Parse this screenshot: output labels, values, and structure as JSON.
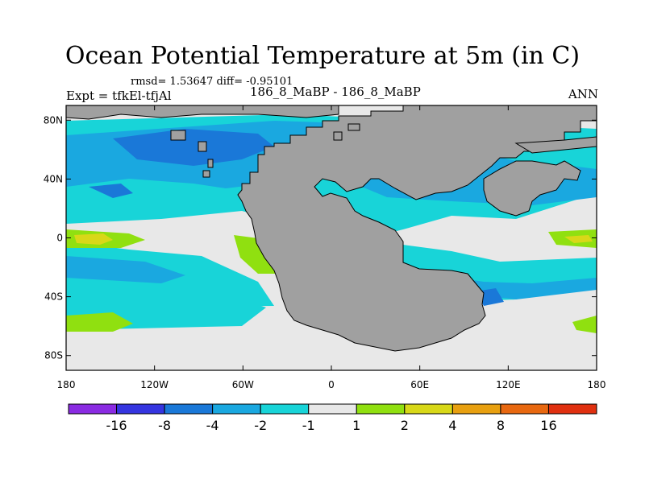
{
  "figure": {
    "title": "Ocean Potential Temperature at 5m (in C)",
    "stats": "rmsd= 1.53647  diff= -0.95101",
    "experiment": "Expt = tfkEl-tfjAl",
    "cases": "186_8_MaBP - 186_8_MaBP",
    "season": "ANN"
  },
  "map": {
    "longitude_ticks": [
      "180",
      "120W",
      "60W",
      "0",
      "60E",
      "120E",
      "180"
    ],
    "latitude_ticks": [
      "80N",
      "40N",
      "0",
      "40S",
      "80S"
    ],
    "land_color": "#a0a0a0",
    "background_color": "#e8e8e8"
  },
  "colorbar": {
    "colors": [
      "#8a2be2",
      "#3535e0",
      "#1a78d8",
      "#1aa8e0",
      "#18d4d8",
      "#e8e8e8",
      "#90e010",
      "#d8d818",
      "#e8a010",
      "#e86810",
      "#e03010"
    ],
    "labels": [
      "-16",
      "-8",
      "-4",
      "-2",
      "-1",
      "1",
      "2",
      "4",
      "8",
      "16"
    ]
  }
}
